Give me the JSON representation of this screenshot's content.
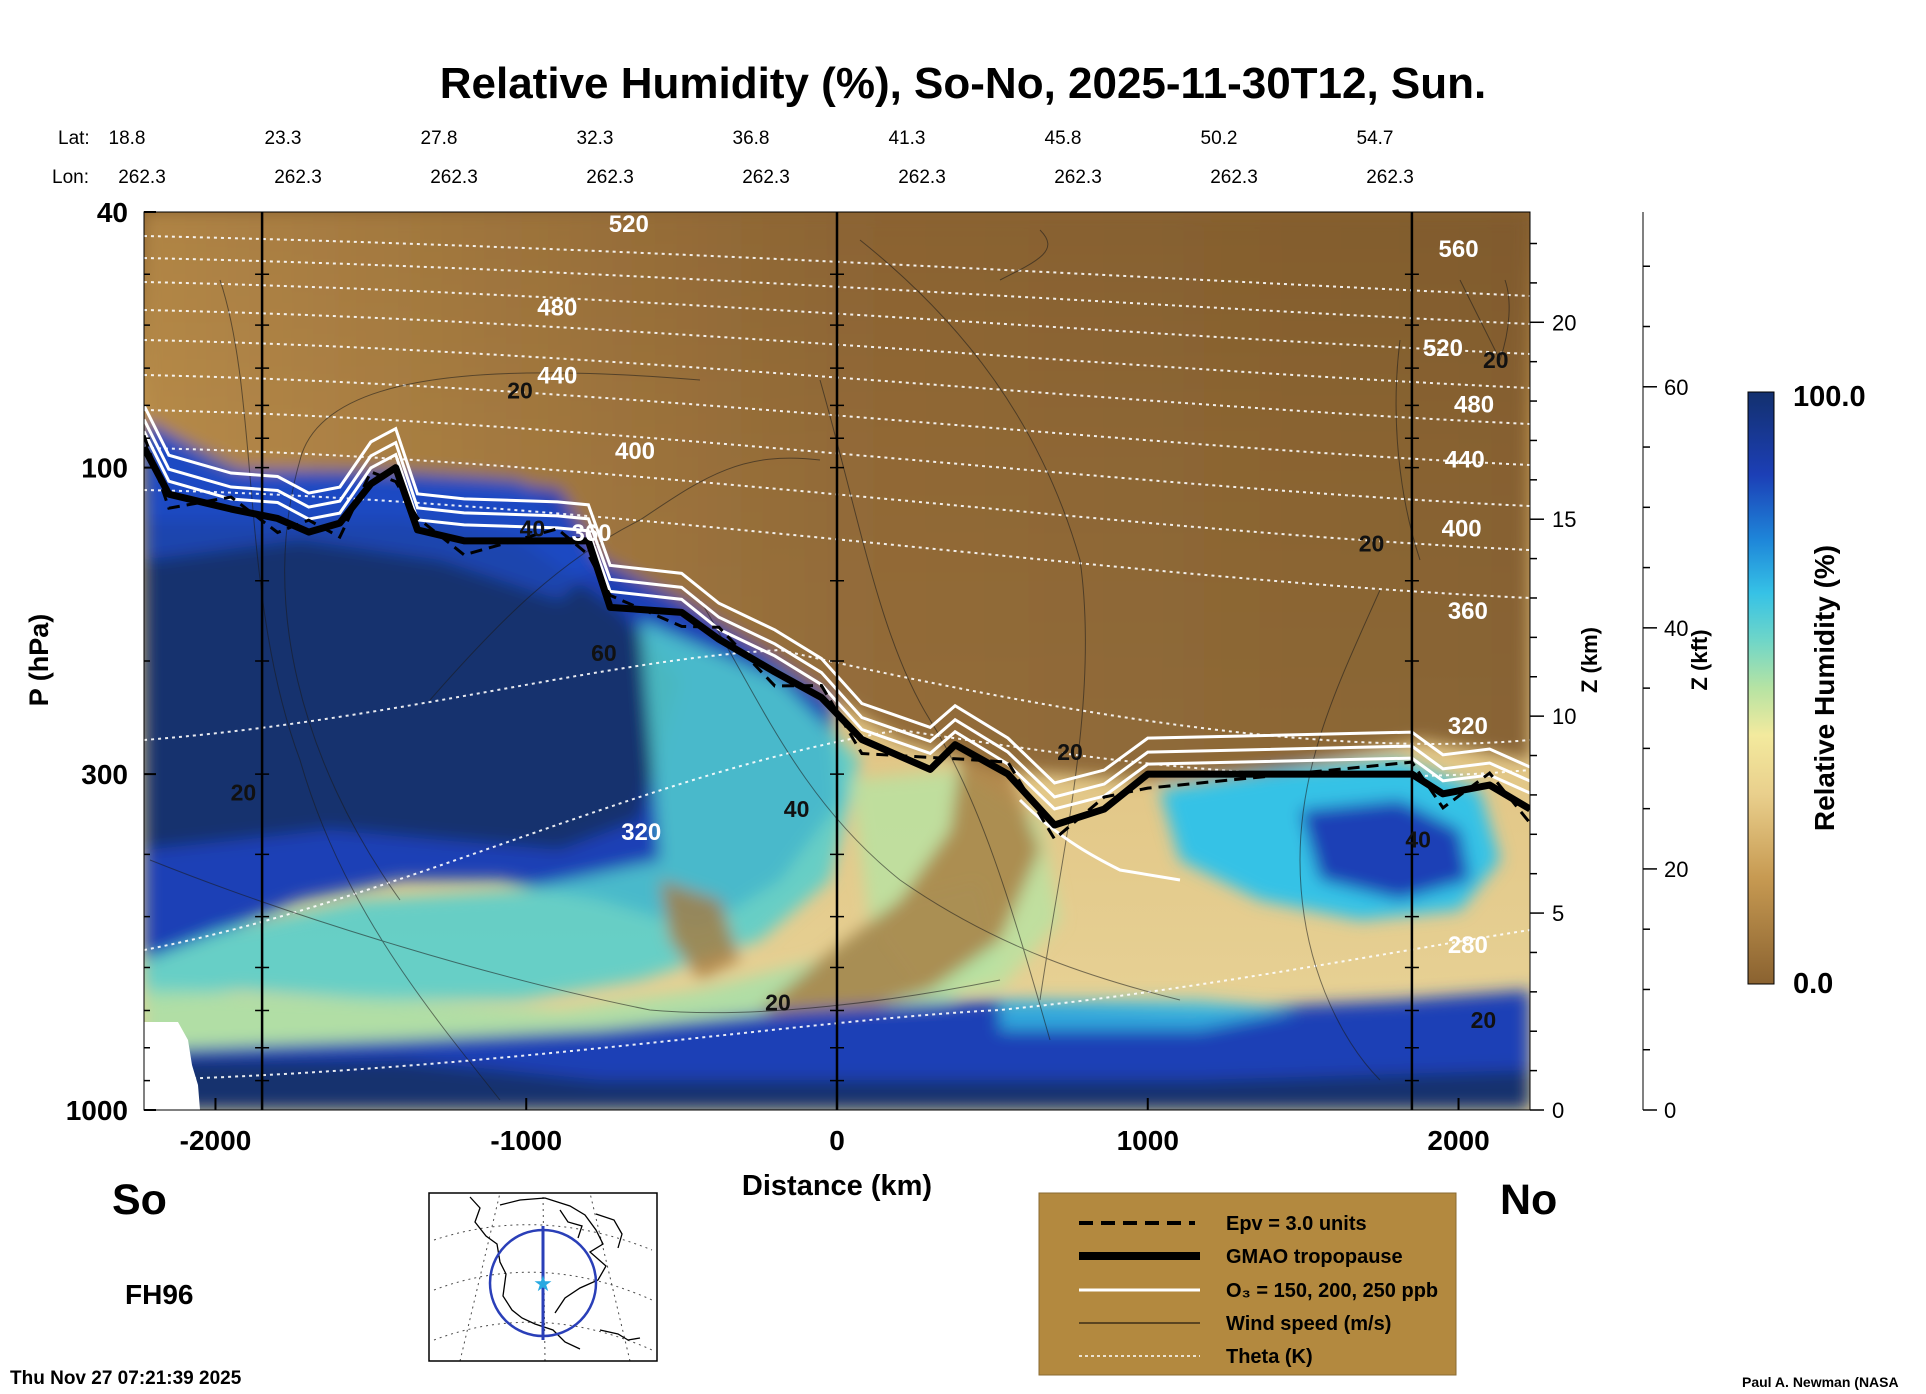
{
  "title": "Relative Humidity (%), So-No, 2025-11-30T12, Sun.",
  "header": {
    "lat_label": "Lat:",
    "lon_label": "Lon:",
    "lats": [
      "18.8",
      "23.3",
      "27.8",
      "32.3",
      "36.8",
      "41.3",
      "45.8",
      "50.2",
      "54.7"
    ],
    "lons": [
      "262.3",
      "262.3",
      "262.3",
      "262.3",
      "262.3",
      "262.3",
      "262.3",
      "262.3",
      "262.3"
    ]
  },
  "axes": {
    "ylabel": "P (hPa)",
    "xlabel": "Distance (km)",
    "z_km_label": "Z (km)",
    "z_kft_label": "Z (kft)",
    "colorbar_label": "Relative Humidity (%)"
  },
  "labels": {
    "left_end": "So",
    "right_end": "No",
    "forecast": "FH96",
    "timestamp": "Thu Nov 27 07:21:39 2025",
    "credit": "Paul A. Newman (NASA"
  },
  "legend": {
    "items": [
      "Epv = 3.0 units",
      "GMAO tropopause",
      "O₃ = 150, 200, 250 ppb",
      "Wind speed (m/s)",
      "Theta (K)"
    ]
  },
  "colors": {
    "dry": "#8a6230",
    "moist": "#13306e",
    "legend_bg": "#b3893f"
  },
  "chart_data": {
    "type": "heatmap",
    "title": "Relative Humidity (%), So-No, 2025-11-30T12, Sun.",
    "xlabel": "Distance (km)",
    "ylabel": "P (hPa)",
    "xlim": [
      -2230,
      2230
    ],
    "ylim": [
      1000,
      40
    ],
    "yscale": "log",
    "x_ticks": [
      -2000,
      -1000,
      0,
      1000,
      2000
    ],
    "y_ticks": [
      40,
      100,
      300,
      1000
    ],
    "z_km_ticks": [
      0,
      5,
      10,
      15,
      20
    ],
    "z_kft_ticks": [
      0,
      20,
      40,
      60
    ],
    "colorbar": {
      "min": "0.0",
      "max": "100.0"
    },
    "vertical_markers_km": [
      -1850,
      0,
      1850
    ],
    "tropopause": [
      [
        -2230,
        93
      ],
      [
        -2150,
        110
      ],
      [
        -1950,
        116
      ],
      [
        -1800,
        120
      ],
      [
        -1700,
        126
      ],
      [
        -1600,
        122
      ],
      [
        -1500,
        106
      ],
      [
        -1420,
        100
      ],
      [
        -1350,
        125
      ],
      [
        -1200,
        130
      ],
      [
        -900,
        130
      ],
      [
        -800,
        130
      ],
      [
        -730,
        165
      ],
      [
        -500,
        168
      ],
      [
        -380,
        185
      ],
      [
        -200,
        208
      ],
      [
        -50,
        228
      ],
      [
        80,
        265
      ],
      [
        300,
        295
      ],
      [
        380,
        270
      ],
      [
        550,
        300
      ],
      [
        700,
        360
      ],
      [
        860,
        340
      ],
      [
        1000,
        300
      ],
      [
        1850,
        300
      ],
      [
        1950,
        322
      ],
      [
        2100,
        312
      ],
      [
        2230,
        340
      ]
    ],
    "theta_labels": [
      {
        "value": "520",
        "x": -670,
        "p": 43
      },
      {
        "value": "480",
        "x": -900,
        "p": 58
      },
      {
        "value": "440",
        "x": -900,
        "p": 74
      },
      {
        "value": "400",
        "x": -650,
        "p": 97
      },
      {
        "value": "360",
        "x": -790,
        "p": 130
      },
      {
        "value": "320",
        "x": -630,
        "p": 380
      },
      {
        "value": "560",
        "x": 2000,
        "p": 47
      },
      {
        "value": "520",
        "x": 1950,
        "p": 67
      },
      {
        "value": "480",
        "x": 2050,
        "p": 82
      },
      {
        "value": "440",
        "x": 2020,
        "p": 100
      },
      {
        "value": "400",
        "x": 2010,
        "p": 128
      },
      {
        "value": "360",
        "x": 2030,
        "p": 172
      },
      {
        "value": "320",
        "x": 2030,
        "p": 260
      },
      {
        "value": "280",
        "x": 2030,
        "p": 570
      }
    ],
    "wind_labels": [
      {
        "value": "20",
        "x": -1020,
        "p": 78
      },
      {
        "value": "40",
        "x": -980,
        "p": 128
      },
      {
        "value": "60",
        "x": -750,
        "p": 200
      },
      {
        "value": "20",
        "x": -1910,
        "p": 330
      },
      {
        "value": "40",
        "x": -130,
        "p": 350
      },
      {
        "value": "20",
        "x": -190,
        "p": 700
      },
      {
        "value": "20",
        "x": 750,
        "p": 285
      },
      {
        "value": "20",
        "x": 1720,
        "p": 135
      },
      {
        "value": "20",
        "x": 2120,
        "p": 70
      },
      {
        "value": "40",
        "x": 1870,
        "p": 390
      },
      {
        "value": "20",
        "x": 2080,
        "p": 745
      }
    ]
  }
}
